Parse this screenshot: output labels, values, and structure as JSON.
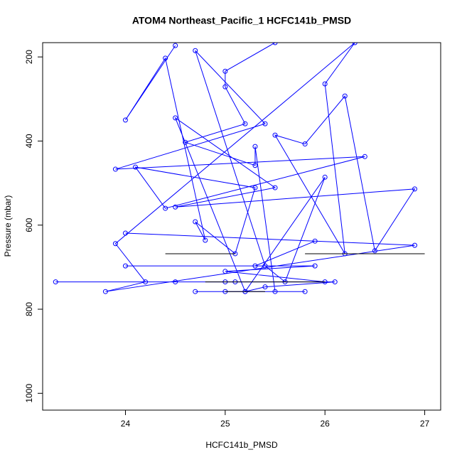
{
  "chart_data": {
    "type": "line",
    "title": "ATOM4 Northeast_Pacific_1 HCFC141b_PMSD",
    "x_label": "HCFC141b_PMSD",
    "y_label": "Pressure (mbar)",
    "xlim": [
      23.17,
      27.16
    ],
    "ylim": [
      166,
      1040
    ],
    "y_reversed": true,
    "xticks": [
      24,
      25,
      26,
      27
    ],
    "yticks": [
      200,
      400,
      600,
      800,
      1000
    ],
    "series": [
      {
        "color": "#0000ff",
        "markers": true,
        "x": [
          24.5,
          24.0,
          24.4,
          24.8,
          24.7,
          25.1,
          25.3,
          24.1,
          24.4,
          26.4,
          23.9,
          25.4,
          24.7,
          25.4,
          25.6,
          26.0,
          25.2,
          24.5,
          25.5,
          24.5,
          26.9,
          26.5,
          26.2,
          25.8,
          25.5,
          26.2,
          26.0,
          26.3,
          23.9,
          24.2,
          23.8,
          26.9,
          24.0,
          25.9,
          25.3,
          24.0,
          25.9,
          25.0,
          26.0,
          25.1,
          24.5,
          23.3,
          25.0,
          26.1,
          25.4,
          25.2,
          24.7,
          25.8,
          25.0,
          25.5,
          25.3,
          25.3,
          24.6,
          25.2,
          25.0,
          25.0,
          25.5
        ],
        "y": [
          173,
          350,
          203,
          636,
          592,
          668,
          511,
          462,
          560,
          437,
          467,
          359,
          185,
          697,
          735,
          486,
          758,
          345,
          511,
          557,
          514,
          661,
          293,
          407,
          386,
          668,
          264,
          166,
          644,
          735,
          758,
          648,
          619,
          638,
          697,
          697,
          697,
          710,
          735,
          735,
          735,
          735,
          735,
          735,
          747,
          758,
          758,
          758,
          758,
          758,
          413,
          458,
          403,
          359,
          271,
          234,
          166
        ]
      },
      {
        "color": "#000000",
        "markers": false,
        "x": [
          24.4,
          25.1,
          null,
          25.8,
          27.0,
          null,
          24.8,
          26.0,
          null,
          25.0,
          25.4
        ],
        "y": [
          668,
          668,
          null,
          668,
          668,
          null,
          735,
          735,
          null,
          758,
          758
        ]
      }
    ]
  }
}
